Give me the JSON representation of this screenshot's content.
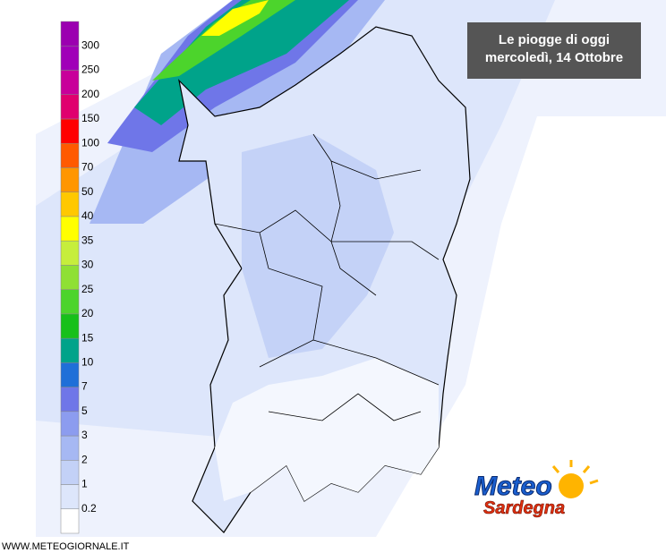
{
  "title": {
    "lines": [
      "Le piogge di oggi",
      "mercoledì, 14 Ottobre"
    ]
  },
  "legend": {
    "labels": [
      "0.2",
      "1",
      "2",
      "3",
      "5",
      "7",
      "10",
      "15",
      "20",
      "25",
      "30",
      "35",
      "40",
      "50",
      "70",
      "100",
      "150",
      "200",
      "250",
      "300"
    ],
    "colors": [
      "#ffffff",
      "#dde6fb",
      "#c3d1f7",
      "#a6b8f3",
      "#8c9cef",
      "#6f76e8",
      "#1f6fd8",
      "#00a38a",
      "#17c01a",
      "#4cd42c",
      "#8fe034",
      "#c6ee3c",
      "#ffff00",
      "#ffc800",
      "#ff9600",
      "#ff5a00",
      "#ff0000",
      "#e0006e",
      "#c8009a",
      "#a000b8",
      "#9b00b0"
    ]
  },
  "watermark": "WWW.METEOGIORNALE.IT",
  "logo": {
    "line1": "Meteo",
    "line2": "Sardegna"
  }
}
